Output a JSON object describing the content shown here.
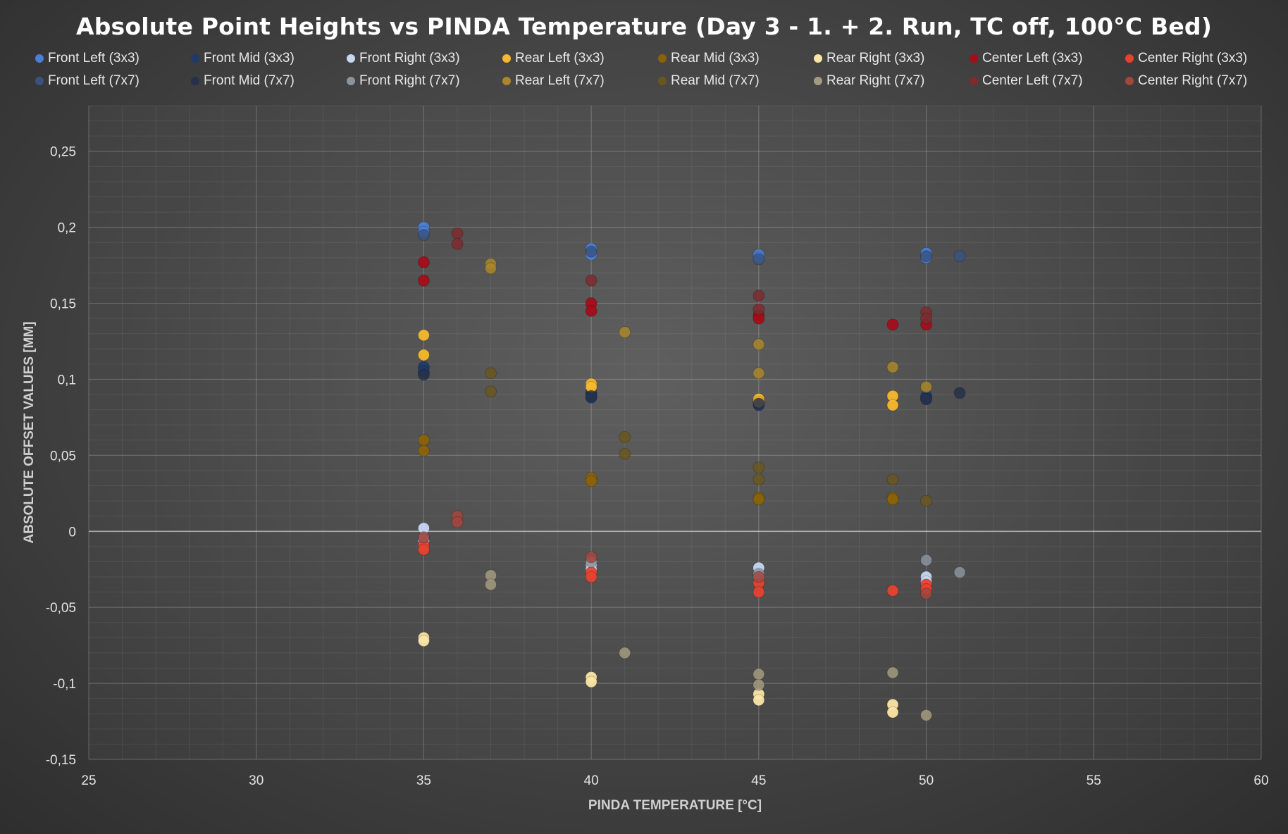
{
  "chart_data": {
    "type": "scatter",
    "title": "Absolute Point Heights vs PINDA Temperature (Day 3 - 1. + 2. Run, TC off, 100°C Bed)",
    "xlabel": "PINDA TEMPERATURE [°C]",
    "ylabel": "ABSOLUTE OFFSET VALUES [MM]",
    "xlim": [
      25,
      60
    ],
    "ylim": [
      -0.15,
      0.28
    ],
    "x_ticks": [
      25,
      30,
      35,
      40,
      45,
      50,
      55,
      60
    ],
    "x_tick_labels": [
      "25",
      "30",
      "35",
      "40",
      "45",
      "50",
      "55",
      "60"
    ],
    "y_ticks": [
      -0.15,
      -0.1,
      -0.05,
      0,
      0.05,
      0.1,
      0.15,
      0.2,
      0.25
    ],
    "y_tick_labels": [
      "-0,15",
      "-0,1",
      "-0,05",
      "0",
      "0,05",
      "0,1",
      "0,15",
      "0,2",
      "0,25"
    ],
    "grid": true,
    "legend_position": "top",
    "series": [
      {
        "name": "Front Left (3x3)",
        "color": "#4a7fd4",
        "points": [
          [
            35,
            0.2
          ],
          [
            35,
            0.197
          ],
          [
            40,
            0.186
          ],
          [
            40,
            0.182
          ],
          [
            45,
            0.182
          ],
          [
            45,
            0.18
          ],
          [
            50,
            0.183
          ],
          [
            50,
            0.18
          ]
        ]
      },
      {
        "name": "Front Mid (3x3)",
        "color": "#1f3a6a",
        "points": [
          [
            35,
            0.108
          ],
          [
            35,
            0.105
          ],
          [
            40,
            0.091
          ],
          [
            40,
            0.088
          ],
          [
            45,
            0.085
          ],
          [
            45,
            0.083
          ],
          [
            50,
            0.089
          ],
          [
            50,
            0.087
          ]
        ]
      },
      {
        "name": "Front Right (3x3)",
        "color": "#c7d7f2",
        "points": [
          [
            35,
            0.002
          ],
          [
            35,
            -0.006
          ],
          [
            40,
            -0.022
          ],
          [
            40,
            -0.025
          ],
          [
            45,
            -0.024
          ],
          [
            45,
            -0.03
          ],
          [
            50,
            -0.03
          ],
          [
            50,
            -0.033
          ]
        ]
      },
      {
        "name": "Rear Left (3x3)",
        "color": "#f5b82c",
        "points": [
          [
            35,
            0.129
          ],
          [
            35,
            0.116
          ],
          [
            40,
            0.097
          ],
          [
            40,
            0.095
          ],
          [
            45,
            0.087
          ],
          [
            45,
            0.085
          ],
          [
            49,
            0.089
          ],
          [
            49,
            0.083
          ]
        ]
      },
      {
        "name": "Rear Mid (3x3)",
        "color": "#8a6209",
        "points": [
          [
            35,
            0.06
          ],
          [
            35,
            0.053
          ],
          [
            40,
            0.035
          ],
          [
            40,
            0.033
          ],
          [
            45,
            0.022
          ],
          [
            45,
            0.021
          ],
          [
            49,
            0.022
          ],
          [
            49,
            0.021
          ]
        ]
      },
      {
        "name": "Rear Right (3x3)",
        "color": "#fbe5a6",
        "points": [
          [
            35,
            -0.07
          ],
          [
            35,
            -0.072
          ],
          [
            40,
            -0.096
          ],
          [
            40,
            -0.099
          ],
          [
            45,
            -0.107
          ],
          [
            45,
            -0.111
          ],
          [
            49,
            -0.114
          ],
          [
            49,
            -0.119
          ]
        ]
      },
      {
        "name": "Center Left (3x3)",
        "color": "#a50d1a",
        "points": [
          [
            35,
            0.177
          ],
          [
            35,
            0.165
          ],
          [
            40,
            0.15
          ],
          [
            40,
            0.145
          ],
          [
            45,
            0.142
          ],
          [
            45,
            0.14
          ],
          [
            49,
            0.136
          ],
          [
            50,
            0.136
          ]
        ]
      },
      {
        "name": "Center Right (3x3)",
        "color": "#e5422f",
        "points": [
          [
            35,
            -0.009
          ],
          [
            35,
            -0.012
          ],
          [
            40,
            -0.027
          ],
          [
            40,
            -0.03
          ],
          [
            45,
            -0.034
          ],
          [
            45,
            -0.04
          ],
          [
            49,
            -0.039
          ],
          [
            50,
            -0.035
          ],
          [
            50,
            -0.038
          ]
        ]
      },
      {
        "name": "Front Left (7x7)",
        "color": "#3a5280",
        "points": [
          [
            35,
            0.195
          ],
          [
            40,
            0.184
          ],
          [
            45,
            0.179
          ],
          [
            50,
            0.181
          ],
          [
            51,
            0.181
          ]
        ]
      },
      {
        "name": "Front Mid (7x7)",
        "color": "#26304a",
        "points": [
          [
            35,
            0.103
          ],
          [
            40,
            0.089
          ],
          [
            45,
            0.084
          ],
          [
            50,
            0.087
          ],
          [
            51,
            0.091
          ]
        ]
      },
      {
        "name": "Front Right (7x7)",
        "color": "#8b939f",
        "points": [
          [
            35,
            -0.004
          ],
          [
            40,
            -0.02
          ],
          [
            45,
            -0.028
          ],
          [
            50,
            -0.019
          ],
          [
            51,
            -0.027
          ]
        ]
      },
      {
        "name": "Rear Left (7x7)",
        "color": "#a8862c",
        "points": [
          [
            37,
            0.176
          ],
          [
            37,
            0.173
          ],
          [
            41,
            0.131
          ],
          [
            45,
            0.123
          ],
          [
            45,
            0.104
          ],
          [
            49,
            0.108
          ],
          [
            50,
            0.095
          ]
        ]
      },
      {
        "name": "Rear Mid (7x7)",
        "color": "#6a5620",
        "points": [
          [
            37,
            0.104
          ],
          [
            37,
            0.092
          ],
          [
            41,
            0.062
          ],
          [
            41,
            0.051
          ],
          [
            45,
            0.042
          ],
          [
            45,
            0.034
          ],
          [
            49,
            0.034
          ],
          [
            50,
            0.02
          ]
        ]
      },
      {
        "name": "Rear Right (7x7)",
        "color": "#a59a7f",
        "points": [
          [
            37,
            -0.029
          ],
          [
            37,
            -0.035
          ],
          [
            41,
            -0.08
          ],
          [
            45,
            -0.094
          ],
          [
            45,
            -0.101
          ],
          [
            49,
            -0.093
          ],
          [
            50,
            -0.121
          ]
        ]
      },
      {
        "name": "Center Left (7x7)",
        "color": "#7e2a2e",
        "points": [
          [
            36,
            0.196
          ],
          [
            36,
            0.189
          ],
          [
            40,
            0.165
          ],
          [
            45,
            0.155
          ],
          [
            45,
            0.146
          ],
          [
            50,
            0.144
          ],
          [
            50,
            0.14
          ]
        ]
      },
      {
        "name": "Center Right (7x7)",
        "color": "#a2463e",
        "points": [
          [
            35,
            -0.004
          ],
          [
            36,
            0.01
          ],
          [
            36,
            0.006
          ],
          [
            40,
            -0.017
          ],
          [
            45,
            -0.03
          ],
          [
            50,
            -0.041
          ]
        ]
      }
    ]
  }
}
